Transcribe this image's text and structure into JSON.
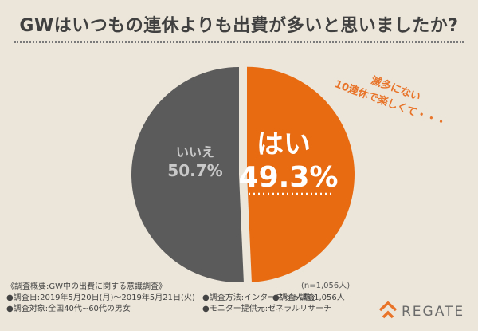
{
  "title": "GWはいつもの連休よりも出費が多いと思いましたか?",
  "chart_data": {
    "type": "pie",
    "slices": [
      {
        "label": "はい",
        "value": 49.3,
        "value_text": "49.3%",
        "color": "#e86b12"
      },
      {
        "label": "いいえ",
        "value": 50.7,
        "value_text": "50.7%",
        "color": "#5b5b5b"
      }
    ],
    "annotation_line1": "滅多にない",
    "annotation_line2": "10連休で楽しくて・・・",
    "sample_size": "(n=1,056人)"
  },
  "survey": {
    "heading": "《調査概要:GW中の出費に関する意識調査》",
    "date": "●調査日:2019年5月20日(月)～2019年5月21日(火)",
    "target": "●調査対象:全国40代~60代の男女",
    "method": "●調査方法:インターネット調査",
    "count": "●調査人数:1,056人",
    "provider": "●モニター提供元:ゼネラルリサーチ"
  },
  "brand": {
    "name": "REGATE",
    "color": "#e8742a"
  }
}
